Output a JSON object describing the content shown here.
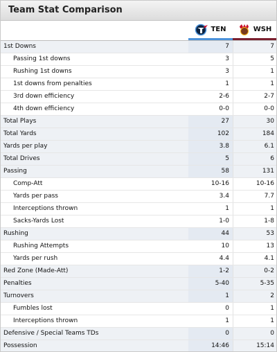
{
  "panel": {
    "title": "Team Stat Comparison"
  },
  "teams": [
    {
      "abbr": "TEN",
      "logo": "titans-logo",
      "color": "#4b92db"
    },
    {
      "abbr": "WSH",
      "logo": "redskins-logo",
      "color": "#7a1f2e"
    }
  ],
  "rows": [
    {
      "label": "1st Downs",
      "ten": "7",
      "wsh": "7",
      "kind": "cat"
    },
    {
      "label": "Passing 1st downs",
      "ten": "3",
      "wsh": "5",
      "kind": "sub"
    },
    {
      "label": "Rushing 1st downs",
      "ten": "3",
      "wsh": "1",
      "kind": "sub"
    },
    {
      "label": "1st downs from penalties",
      "ten": "1",
      "wsh": "1",
      "kind": "sub"
    },
    {
      "label": "3rd down efficiency",
      "ten": "2-6",
      "wsh": "2-7",
      "kind": "sub"
    },
    {
      "label": "4th down efficiency",
      "ten": "0-0",
      "wsh": "0-0",
      "kind": "sub"
    },
    {
      "label": "Total Plays",
      "ten": "27",
      "wsh": "30",
      "kind": "cat"
    },
    {
      "label": "Total Yards",
      "ten": "102",
      "wsh": "184",
      "kind": "cat"
    },
    {
      "label": "Yards per play",
      "ten": "3.8",
      "wsh": "6.1",
      "kind": "cat"
    },
    {
      "label": "Total Drives",
      "ten": "5",
      "wsh": "6",
      "kind": "cat"
    },
    {
      "label": "Passing",
      "ten": "58",
      "wsh": "131",
      "kind": "cat"
    },
    {
      "label": "Comp-Att",
      "ten": "10-16",
      "wsh": "10-16",
      "kind": "sub"
    },
    {
      "label": "Yards per pass",
      "ten": "3.4",
      "wsh": "7.7",
      "kind": "sub"
    },
    {
      "label": "Interceptions thrown",
      "ten": "1",
      "wsh": "1",
      "kind": "sub"
    },
    {
      "label": "Sacks-Yards Lost",
      "ten": "1-0",
      "wsh": "1-8",
      "kind": "sub"
    },
    {
      "label": "Rushing",
      "ten": "44",
      "wsh": "53",
      "kind": "cat"
    },
    {
      "label": "Rushing Attempts",
      "ten": "10",
      "wsh": "13",
      "kind": "sub"
    },
    {
      "label": "Yards per rush",
      "ten": "4.4",
      "wsh": "4.1",
      "kind": "sub"
    },
    {
      "label": "Red Zone (Made-Att)",
      "ten": "1-2",
      "wsh": "0-2",
      "kind": "cat"
    },
    {
      "label": "Penalties",
      "ten": "5-40",
      "wsh": "5-35",
      "kind": "cat"
    },
    {
      "label": "Turnovers",
      "ten": "1",
      "wsh": "2",
      "kind": "cat"
    },
    {
      "label": "Fumbles lost",
      "ten": "0",
      "wsh": "1",
      "kind": "sub"
    },
    {
      "label": "Interceptions thrown",
      "ten": "1",
      "wsh": "1",
      "kind": "sub"
    },
    {
      "label": "Defensive / Special Teams TDs",
      "ten": "0",
      "wsh": "0",
      "kind": "cat"
    },
    {
      "label": "Possession",
      "ten": "14:46",
      "wsh": "15:14",
      "kind": "cat"
    }
  ]
}
